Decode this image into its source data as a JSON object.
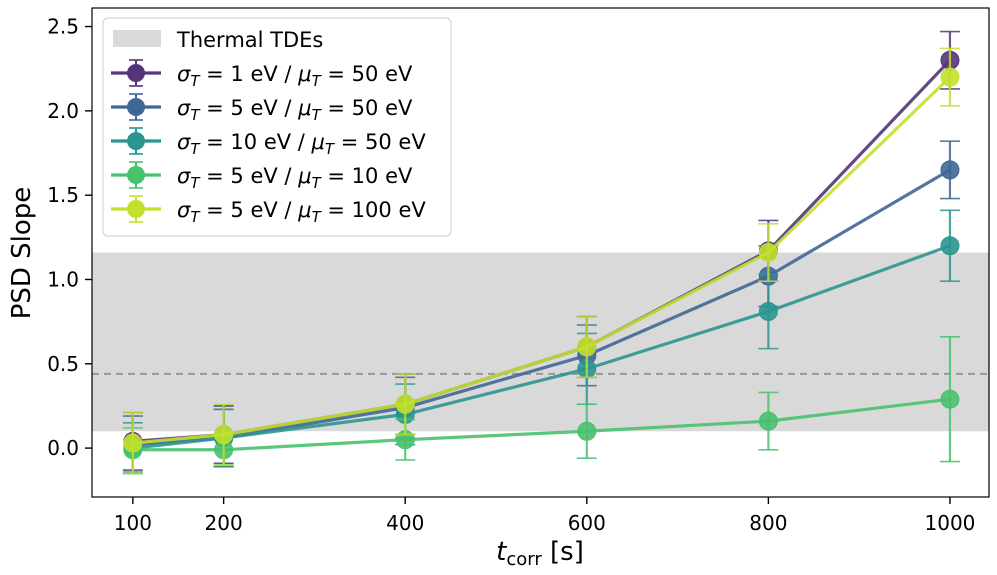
{
  "chart_data": {
    "type": "line",
    "title": "",
    "xlabel": "t",
    "xlabel_sub": "corr",
    "xlabel_unit": " [s]",
    "ylabel": "PSD Slope",
    "xlim": [
      55,
      1043
    ],
    "ylim": [
      -0.29,
      2.61
    ],
    "xticks": [
      100,
      200,
      400,
      600,
      800,
      1000
    ],
    "yticks": [
      0.0,
      0.5,
      1.0,
      1.5,
      2.0,
      2.5
    ],
    "x": [
      100,
      200,
      400,
      600,
      800,
      1000
    ],
    "band": {
      "label": "Thermal TDEs",
      "ymin": 0.1,
      "ymax": 1.16,
      "color": "#d9d9d9"
    },
    "reference_line": {
      "y": 0.44,
      "color": "#999999"
    },
    "legend_position": "upper-left",
    "series": [
      {
        "name": "σ_T = 1 eV / μ_T = 50 eV",
        "legend": {
          "s1": "1",
          "m1": "50"
        },
        "color": "#55347a",
        "values": [
          0.04,
          0.08,
          0.26,
          0.6,
          1.17,
          2.3
        ],
        "errors": [
          0.17,
          0.17,
          0.18,
          0.18,
          0.18,
          0.17
        ]
      },
      {
        "name": "σ_T = 5 eV / μ_T = 50 eV",
        "legend": {
          "s1": "5",
          "m1": "50"
        },
        "color": "#3f6795",
        "values": [
          0.02,
          0.06,
          0.24,
          0.55,
          1.02,
          1.65
        ],
        "errors": [
          0.17,
          0.17,
          0.18,
          0.18,
          0.18,
          0.17
        ]
      },
      {
        "name": "σ_T = 10 eV / μ_T = 50 eV",
        "legend": {
          "s1": "10",
          "m1": "50"
        },
        "color": "#2b9590",
        "values": [
          0.0,
          0.06,
          0.2,
          0.47,
          0.81,
          1.2
        ],
        "errors": [
          0.15,
          0.17,
          0.18,
          0.21,
          0.22,
          0.21
        ]
      },
      {
        "name": "σ_T = 5 eV / μ_T = 10 eV",
        "legend": {
          "s1": "5",
          "m1": "10"
        },
        "color": "#48c16e",
        "values": [
          -0.01,
          -0.01,
          0.05,
          0.1,
          0.16,
          0.29
        ],
        "errors": [
          0.13,
          0.09,
          0.12,
          0.16,
          0.17,
          0.37
        ]
      },
      {
        "name": "σ_T = 5 eV / μ_T = 100 eV",
        "legend": {
          "s1": "5",
          "m1": "100"
        },
        "color": "#c1e12b",
        "values": [
          0.03,
          0.08,
          0.26,
          0.6,
          1.16,
          2.2
        ],
        "errors": [
          0.18,
          0.18,
          0.18,
          0.18,
          0.17,
          0.17
        ]
      }
    ]
  }
}
